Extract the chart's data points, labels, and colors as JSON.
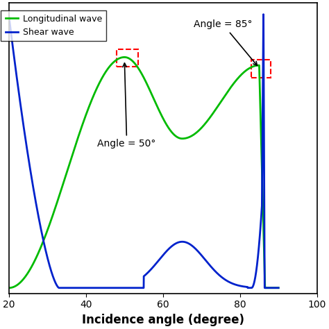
{
  "xlabel": "Incidence angle (degree)",
  "xlim": [
    20,
    100
  ],
  "ylim": [
    -0.02,
    1.05
  ],
  "xticks": [
    20,
    40,
    60,
    80,
    100
  ],
  "legend_labels": [
    "Longitudinal wave",
    "Shear wave"
  ],
  "green_color": "#00bb00",
  "blue_color": "#0022cc",
  "annotation1_text": "Angle = 50°",
  "annotation2_text": "Angle = 85°"
}
